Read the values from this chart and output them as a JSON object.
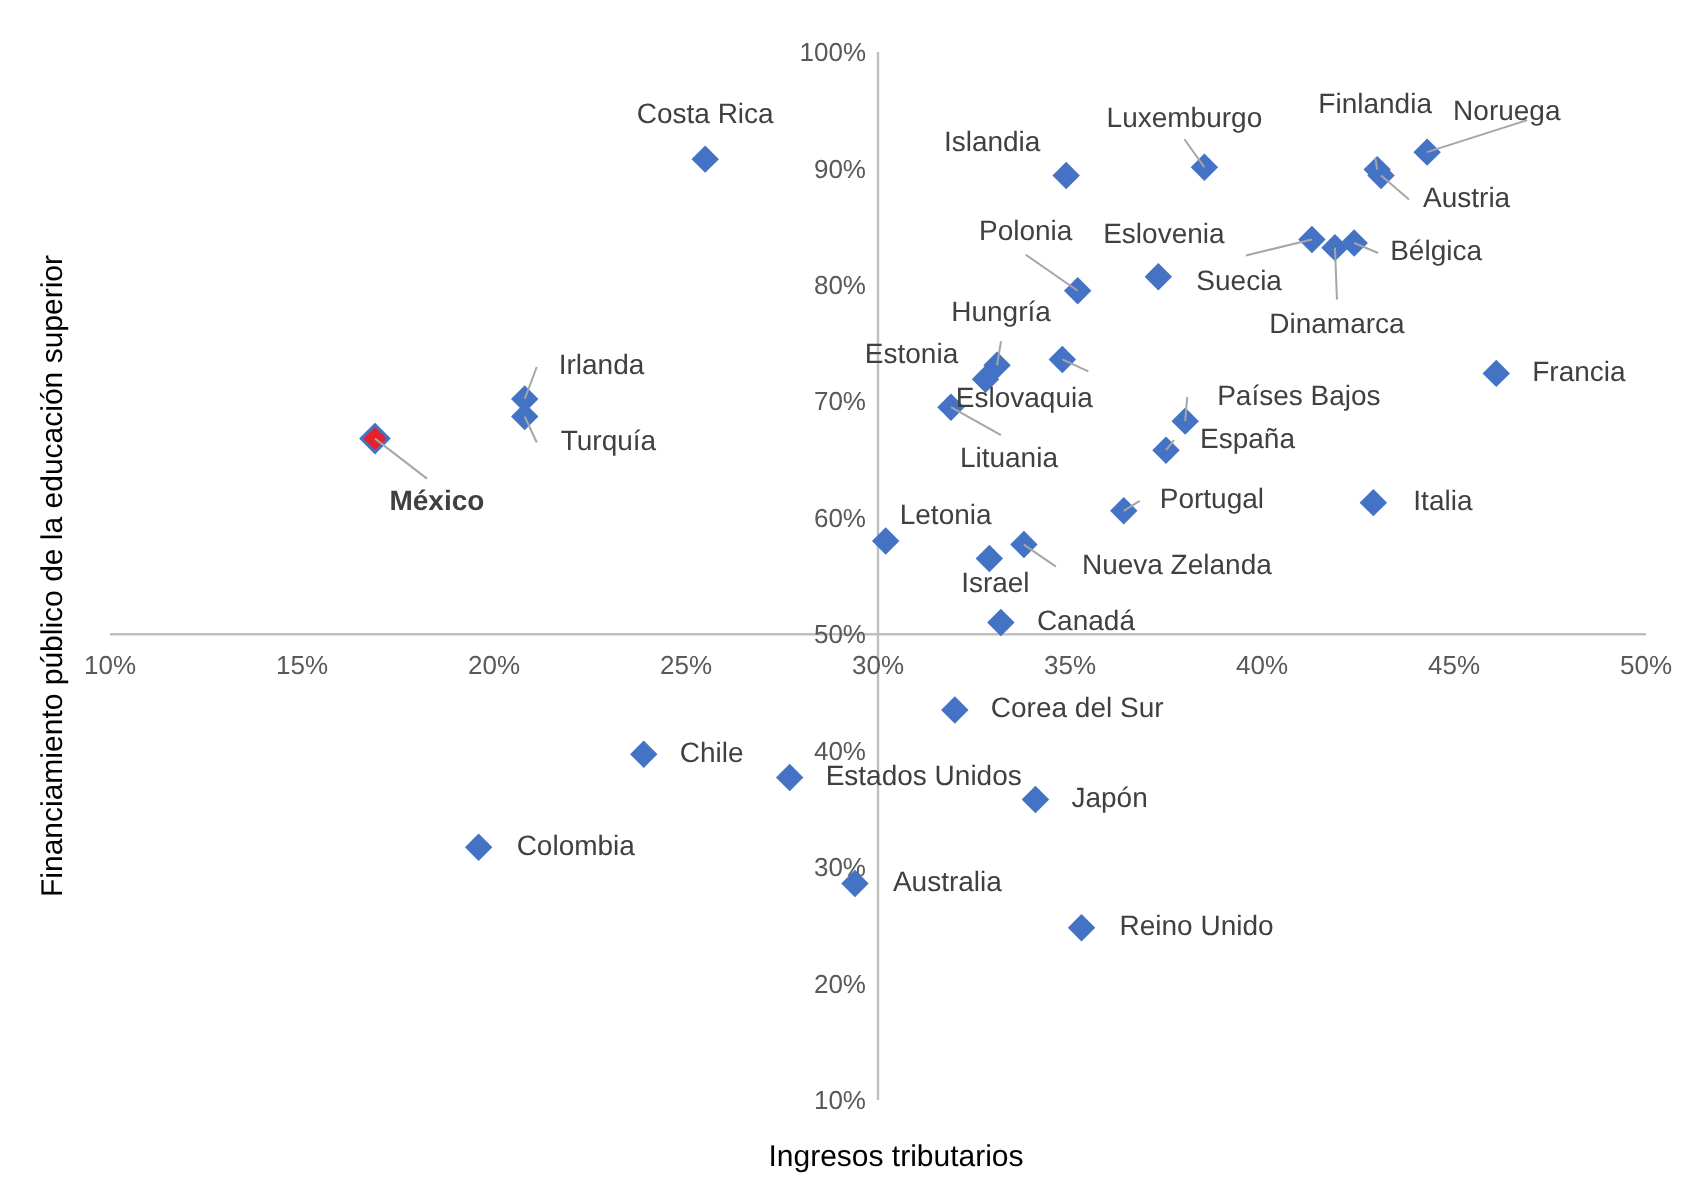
{
  "chart_data": {
    "type": "scatter",
    "xlabel": "Ingresos tributarios",
    "ylabel": "Financiamiento público de la educación superior",
    "marker": "diamond",
    "grid": false,
    "xlim": [
      10,
      50
    ],
    "ylim": [
      10,
      100
    ],
    "xticks": [
      {
        "value": 10,
        "label": "10%"
      },
      {
        "value": 15,
        "label": "15%"
      },
      {
        "value": 20,
        "label": "20%"
      },
      {
        "value": 25,
        "label": "25%"
      },
      {
        "value": 30,
        "label": "30%"
      },
      {
        "value": 35,
        "label": "35%"
      },
      {
        "value": 40,
        "label": "40%"
      },
      {
        "value": 45,
        "label": "45%"
      },
      {
        "value": 50,
        "label": "50%"
      }
    ],
    "yticks": [
      {
        "value": 10,
        "label": "10%"
      },
      {
        "value": 20,
        "label": "20%"
      },
      {
        "value": 30,
        "label": "30%"
      },
      {
        "value": 40,
        "label": "40%"
      },
      {
        "value": 50,
        "label": "50%"
      },
      {
        "value": 60,
        "label": "60%"
      },
      {
        "value": 70,
        "label": "70%"
      },
      {
        "value": 80,
        "label": "80%"
      },
      {
        "value": 90,
        "label": "90%"
      },
      {
        "value": 100,
        "label": "100%"
      }
    ],
    "series": [
      {
        "color": "#4472c4",
        "x": [
          25.5,
          20.8,
          20.8,
          34.9,
          38.5,
          43.0,
          43.1,
          44.3,
          41.3,
          37.3,
          41.9,
          42.4,
          35.2,
          33.1,
          32.8,
          34.8,
          31.9,
          38.0,
          37.5,
          46.1,
          36.4,
          42.9,
          30.2,
          32.9,
          33.8,
          33.2,
          32.0,
          23.9,
          27.7,
          34.1,
          19.6,
          29.4,
          35.3
        ],
        "values": [
          90.8,
          70.2,
          68.7,
          89.4,
          90.1,
          89.9,
          89.4,
          91.4,
          83.9,
          80.7,
          83.2,
          83.6,
          79.5,
          73.1,
          71.9,
          73.6,
          69.5,
          68.3,
          65.8,
          72.4,
          60.6,
          61.3,
          58.0,
          56.5,
          57.7,
          51.0,
          43.5,
          39.7,
          37.7,
          35.8,
          31.7,
          28.6,
          24.8
        ]
      },
      {
        "name": "México",
        "color": "#e8202a",
        "x": [
          16.9
        ],
        "values": [
          66.8
        ]
      }
    ],
    "annotations": [
      {
        "text": "Costa Rica",
        "x": 25.5,
        "y": 90.8
      },
      {
        "text": "Irlanda",
        "x": 20.8,
        "y": 70.2
      },
      {
        "text": "Turquía",
        "x": 20.8,
        "y": 68.7
      },
      {
        "text": "Islandia",
        "x": 34.9,
        "y": 89.4
      },
      {
        "text": "Luxemburgo",
        "x": 38.5,
        "y": 90.1
      },
      {
        "text": "Finlandia",
        "x": 43.0,
        "y": 89.9
      },
      {
        "text": "Austria",
        "x": 43.1,
        "y": 89.4
      },
      {
        "text": "Noruega",
        "x": 44.3,
        "y": 91.4
      },
      {
        "text": "Eslovenia",
        "x": 41.3,
        "y": 83.9
      },
      {
        "text": "Suecia",
        "x": 37.3,
        "y": 80.7
      },
      {
        "text": "Dinamarca",
        "x": 41.9,
        "y": 83.2
      },
      {
        "text": "Bélgica",
        "x": 42.4,
        "y": 83.6
      },
      {
        "text": "Polonia",
        "x": 35.2,
        "y": 79.5
      },
      {
        "text": "Hungría",
        "x": 33.1,
        "y": 73.1
      },
      {
        "text": "Estonia",
        "x": 32.8,
        "y": 71.9
      },
      {
        "text": "Eslovaquia",
        "x": 34.8,
        "y": 73.6
      },
      {
        "text": "Lituania",
        "x": 31.9,
        "y": 69.5
      },
      {
        "text": "Países Bajos",
        "x": 38.0,
        "y": 68.3
      },
      {
        "text": "España",
        "x": 37.5,
        "y": 65.8
      },
      {
        "text": "Francia",
        "x": 46.1,
        "y": 72.4
      },
      {
        "text": "Portugal",
        "x": 36.4,
        "y": 60.6
      },
      {
        "text": "Italia",
        "x": 42.9,
        "y": 61.3
      },
      {
        "text": "Letonia",
        "x": 30.2,
        "y": 58.0
      },
      {
        "text": "Israel",
        "x": 32.9,
        "y": 56.5
      },
      {
        "text": "Nueva Zelanda",
        "x": 33.8,
        "y": 57.7
      },
      {
        "text": "Canadá",
        "x": 33.2,
        "y": 51.0
      },
      {
        "text": "Corea del Sur",
        "x": 32.0,
        "y": 43.5
      },
      {
        "text": "Chile",
        "x": 23.9,
        "y": 39.7
      },
      {
        "text": "Estados Unidos",
        "x": 27.7,
        "y": 37.7
      },
      {
        "text": "Japón",
        "x": 34.1,
        "y": 35.8
      },
      {
        "text": "Colombia",
        "x": 19.6,
        "y": 31.7
      },
      {
        "text": "Australia",
        "x": 29.4,
        "y": 28.6
      },
      {
        "text": "Reino Unido",
        "x": 35.3,
        "y": 24.8
      }
    ]
  }
}
